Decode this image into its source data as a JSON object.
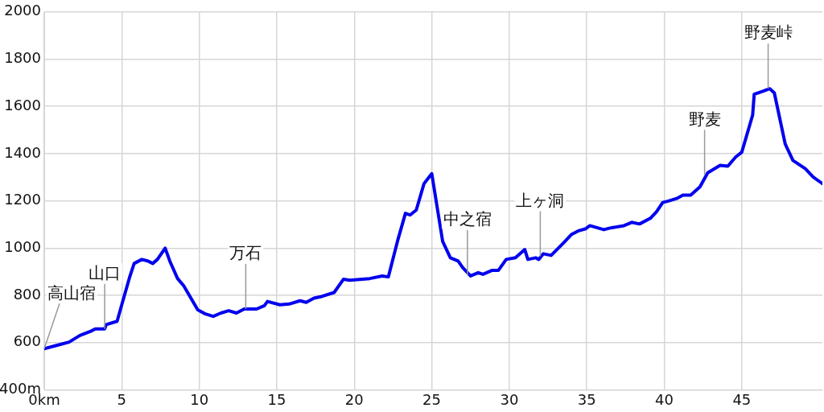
{
  "chart_data": {
    "type": "line",
    "x": [
      0,
      0.8,
      1.6,
      2.3,
      3.0,
      3.3,
      3.9,
      4.0,
      4.7,
      5.0,
      5.5,
      5.8,
      6.3,
      6.7,
      7.0,
      7.3,
      7.8,
      8.1,
      8.6,
      9.0,
      9.5,
      9.9,
      10.4,
      10.9,
      11.4,
      11.9,
      12.4,
      12.9,
      13.7,
      14.2,
      14.4,
      15.2,
      15.8,
      16.5,
      16.9,
      17.4,
      17.9,
      18.7,
      19.3,
      19.7,
      21.0,
      21.8,
      22.2,
      22.8,
      23.3,
      23.6,
      24.0,
      24.5,
      25.0,
      25.7,
      26.2,
      26.7,
      27.0,
      27.5,
      28.0,
      28.3,
      28.9,
      29.3,
      29.8,
      30.4,
      31.0,
      31.2,
      31.7,
      31.9,
      32.2,
      32.7,
      33.5,
      34.0,
      34.5,
      34.9,
      35.2,
      36.1,
      36.5,
      37.4,
      37.9,
      38.4,
      39.1,
      39.5,
      39.9,
      40.3,
      40.8,
      41.2,
      41.7,
      42.3,
      42.8,
      43.6,
      44.1,
      44.6,
      45.0,
      45.7,
      45.8,
      46.4,
      46.8,
      47.1,
      47.8,
      48.3,
      49.1,
      49.6,
      50.2
    ],
    "series": [
      {
        "color": "#0000ee",
        "values": [
          574,
          588,
          602,
          630,
          648,
          658,
          658,
          676,
          690,
          760,
          875,
          935,
          952,
          945,
          935,
          952,
          1000,
          945,
          871,
          840,
          784,
          739,
          721,
          711,
          725,
          735,
          725,
          742,
          742,
          756,
          774,
          760,
          763,
          777,
          770,
          788,
          795,
          812,
          868,
          864,
          871,
          882,
          878,
          1032,
          1147,
          1140,
          1161,
          1273,
          1315,
          1029,
          959,
          945,
          917,
          882,
          896,
          889,
          906,
          906,
          952,
          959,
          994,
          952,
          959,
          952,
          976,
          969,
          1022,
          1057,
          1074,
          1081,
          1095,
          1078,
          1085,
          1095,
          1109,
          1102,
          1126,
          1154,
          1193,
          1200,
          1210,
          1224,
          1224,
          1259,
          1319,
          1350,
          1347,
          1385,
          1406,
          1563,
          1651,
          1665,
          1675,
          1657,
          1441,
          1371,
          1336,
          1301,
          1273
        ]
      }
    ],
    "xlim": [
      0,
      50.2
    ],
    "xticks": [
      {
        "value": 0,
        "label": "0km"
      },
      5,
      10,
      15,
      20,
      25,
      30,
      35,
      40,
      45
    ],
    "ylim": [
      400,
      2000
    ],
    "yticks": [
      {
        "value": 400,
        "label": "400m"
      },
      600,
      800,
      1000,
      1200,
      1400,
      1600,
      1800,
      2000
    ],
    "grid": true,
    "legend": false,
    "marker": "none",
    "line_style": "solid",
    "annotations": [
      {
        "text": "高山宿",
        "x": 0,
        "y": 574
      },
      {
        "text": "山口",
        "x": 3.9,
        "y": 658
      },
      {
        "text": "万石",
        "x": 13.0,
        "y": 742
      },
      {
        "text": "中之宿",
        "x": 27.3,
        "y": 885
      },
      {
        "text": "上ヶ洞",
        "x": 32.0,
        "y": 965
      },
      {
        "text": "野麦",
        "x": 42.6,
        "y": 1310
      },
      {
        "text": "野麦峠",
        "x": 46.7,
        "y": 1675
      }
    ]
  }
}
